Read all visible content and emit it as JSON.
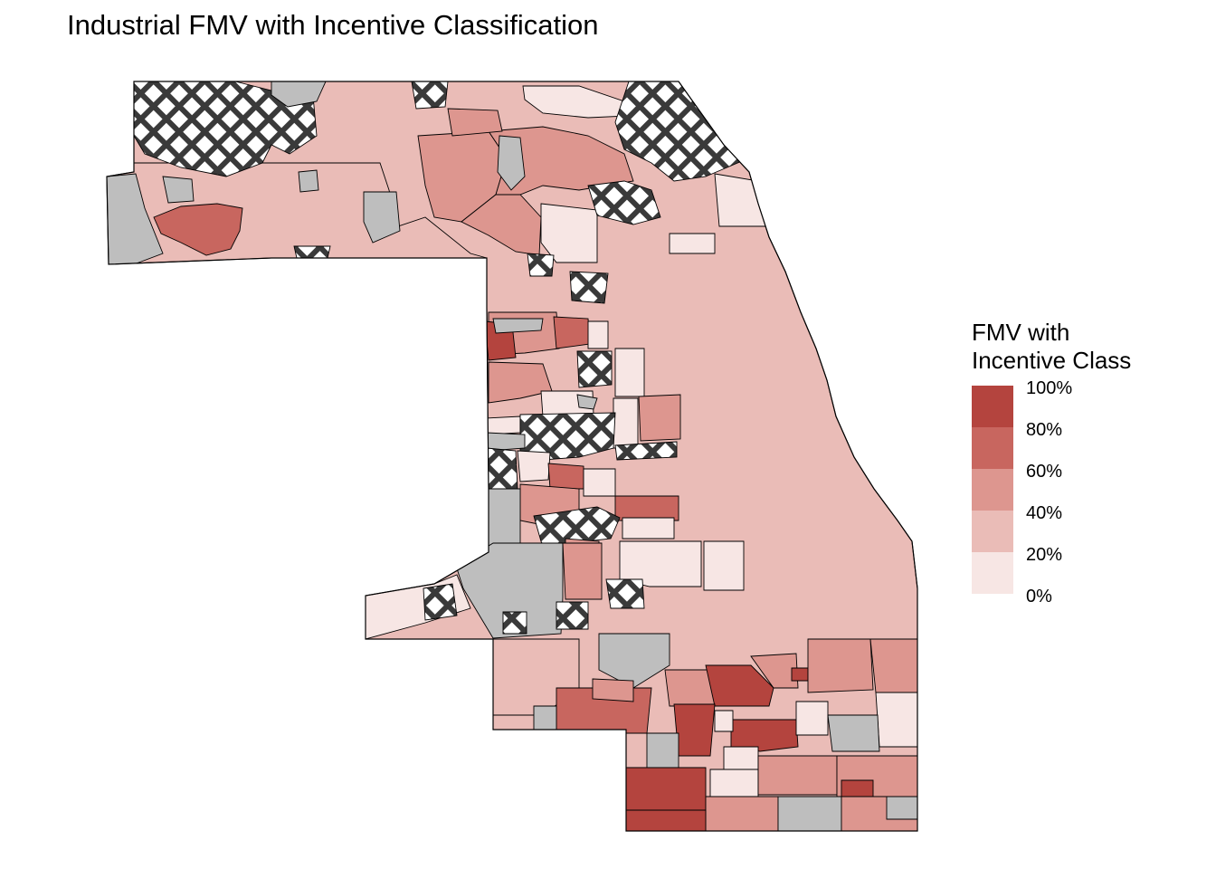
{
  "title": "Industrial FMV with Incentive Classification",
  "legend": {
    "title_line1": "FMV with",
    "title_line2": "Incentive Class",
    "stops": [
      "100%",
      "80%",
      "60%",
      "40%",
      "20%",
      "0%"
    ],
    "colors": [
      "#b4443e",
      "#c8665f",
      "#dd968f",
      "#eabcb7",
      "#f7e6e4"
    ]
  },
  "colors": {
    "no_data": "#bebebe",
    "hatch_background": "#ffffff",
    "hatch_lines": "#3a3a3a",
    "boundary": "#000000"
  }
}
